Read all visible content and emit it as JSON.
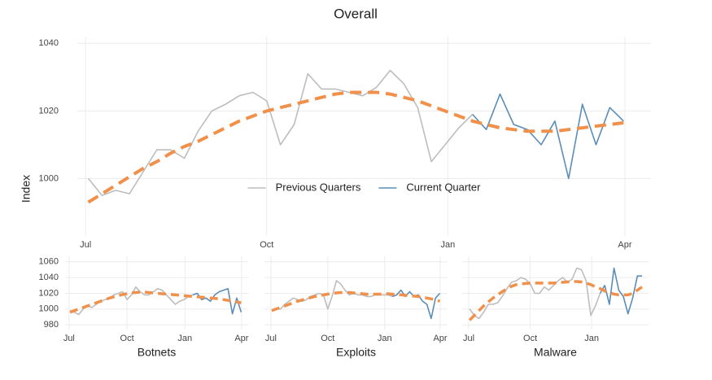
{
  "chart_data": [
    {
      "type": "line",
      "title": "Overall",
      "ylabel": "Index",
      "legend": "center",
      "grid": true,
      "x": [
        0,
        1,
        2,
        3,
        4,
        5,
        6,
        7,
        8,
        9,
        10,
        11,
        12,
        13,
        14,
        15,
        16,
        17,
        18,
        19,
        20,
        21,
        22,
        23,
        24,
        25,
        26,
        27,
        28,
        29,
        30,
        31,
        32,
        33,
        34,
        35,
        36,
        37,
        38,
        39
      ],
      "xlim": [
        -0.8,
        41
      ],
      "xticks": [
        {
          "value": -0.2,
          "label": "Jul"
        },
        {
          "value": 13,
          "label": "Oct"
        },
        {
          "value": 26.2,
          "label": "Jan"
        },
        {
          "value": 39.1,
          "label": "Apr"
        }
      ],
      "ylim": [
        983,
        1042
      ],
      "yticks": [
        1000,
        1020,
        1040
      ],
      "series": [
        {
          "name": "Previous Quarters",
          "color": "#bdbdbd",
          "values": [
            1000,
            995,
            996.5,
            995.5,
            1002,
            1008.5,
            1008.5,
            1006,
            1014,
            1020,
            1022,
            1024.5,
            1025.5,
            1023,
            1010,
            1016,
            1031,
            1026.5,
            1026.5,
            1025.5,
            1024.5,
            1027,
            1032,
            1028,
            1021,
            1005,
            1010,
            1015,
            1019,
            null,
            null,
            null,
            null,
            null,
            null,
            null,
            null,
            null,
            null,
            null
          ]
        },
        {
          "name": "Current Quarter",
          "color": "#5b8db8",
          "values": [
            null,
            null,
            null,
            null,
            null,
            null,
            null,
            null,
            null,
            null,
            null,
            null,
            null,
            null,
            null,
            null,
            null,
            null,
            null,
            null,
            null,
            null,
            null,
            null,
            null,
            null,
            null,
            null,
            1019,
            1014.5,
            1025,
            1016,
            1014.5,
            1010,
            1017,
            1000,
            1022,
            1010,
            1021,
            1017
          ]
        },
        {
          "color": "#f0904a",
          "dash": true,
          "values": [
            993,
            995.5,
            998,
            1000.5,
            1003,
            1005,
            1007.5,
            1009.5,
            1011,
            1013,
            1015,
            1017,
            1018.5,
            1020,
            1021,
            1022,
            1023,
            1024,
            1025,
            1025.5,
            1025.5,
            1025.5,
            1025,
            1024,
            1023,
            1021.5,
            1020,
            1018.5,
            1017,
            1016,
            1015,
            1014.5,
            1014,
            1014,
            1014,
            1014.5,
            1015,
            1015.5,
            1016,
            1016.5
          ]
        }
      ]
    },
    {
      "type": "line",
      "title": "Botnets",
      "grid": true,
      "x": [
        0,
        1,
        2,
        3,
        4,
        5,
        6,
        7,
        8,
        9,
        10,
        11,
        12,
        13,
        14,
        15,
        16,
        17,
        18,
        19,
        20,
        21,
        22,
        23,
        24,
        25,
        26,
        27,
        28,
        29,
        30,
        31,
        32,
        33,
        34,
        35,
        36,
        37,
        38,
        39
      ],
      "xlim": [
        -1.1,
        40.6
      ],
      "xticks": [
        {
          "value": -0.2,
          "label": "Jul"
        },
        {
          "value": 13,
          "label": "Oct"
        },
        {
          "value": 26.2,
          "label": "Jan"
        },
        {
          "value": 39.1,
          "label": "Apr"
        }
      ],
      "ylim": [
        974,
        1067
      ],
      "yticks": [
        980,
        1000,
        1020,
        1040,
        1060
      ],
      "series": [
        {
          "color": "#bdbdbd",
          "values": [
            998,
            996,
            993,
            1000,
            1004,
            1002,
            1006,
            1010,
            1012,
            1014,
            1018,
            1020,
            1022,
            1012,
            1018,
            1028,
            1022,
            1018,
            1018,
            1022,
            1026,
            1024,
            1018,
            1012,
            1006,
            1010,
            1012,
            1016,
            1018,
            null,
            null,
            null,
            null,
            null,
            null,
            null,
            null,
            null,
            null,
            null
          ]
        },
        {
          "color": "#5b8db8",
          "values": [
            null,
            null,
            null,
            null,
            null,
            null,
            null,
            null,
            null,
            null,
            null,
            null,
            null,
            null,
            null,
            null,
            null,
            null,
            null,
            null,
            null,
            null,
            null,
            null,
            null,
            null,
            null,
            null,
            1018,
            1020,
            1012,
            1014,
            1010,
            1018,
            1022,
            1024,
            1026,
            994,
            1014,
            996
          ]
        },
        {
          "color": "#f0904a",
          "dash": true,
          "values": [
            996,
            998,
            1000,
            1002,
            1004,
            1006,
            1008,
            1010,
            1012,
            1014,
            1015.5,
            1017,
            1018.5,
            1019.5,
            1020.5,
            1021,
            1021.5,
            1021.5,
            1021,
            1020.5,
            1020,
            1019.5,
            1019,
            1018.5,
            1018,
            1017.5,
            1017,
            1016.5,
            1016,
            1015.5,
            1015,
            1014.5,
            1014,
            1013.5,
            1013,
            1012,
            1011,
            1010,
            1009,
            1008
          ]
        }
      ]
    },
    {
      "type": "line",
      "title": "Exploits",
      "grid": true,
      "sharey": true,
      "x": [
        0,
        1,
        2,
        3,
        4,
        5,
        6,
        7,
        8,
        9,
        10,
        11,
        12,
        13,
        14,
        15,
        16,
        17,
        18,
        19,
        20,
        21,
        22,
        23,
        24,
        25,
        26,
        27,
        28,
        29,
        30,
        31,
        32,
        33,
        34,
        35,
        36,
        37,
        38,
        39
      ],
      "xlim": [
        -1.7,
        40.8
      ],
      "xticks": [
        {
          "value": -0.2,
          "label": "Jul"
        },
        {
          "value": 13,
          "label": "Oct"
        },
        {
          "value": 26.2,
          "label": "Jan"
        },
        {
          "value": 39.1,
          "label": "Apr"
        }
      ],
      "ylim": [
        974,
        1067
      ],
      "yticks": [
        980,
        1000,
        1020,
        1040,
        1060
      ],
      "series": [
        {
          "color": "#bdbdbd",
          "values": [
            998,
            1000,
            1000,
            1006,
            1010,
            1014,
            1012,
            1010,
            1012,
            1016,
            1018,
            1020,
            1018,
            1000,
            1016,
            1036,
            1032,
            1024,
            1018,
            1020,
            1018,
            1018,
            1016,
            1016,
            1018,
            1018,
            1018,
            1018,
            1016,
            null,
            null,
            null,
            null,
            null,
            null,
            null,
            null,
            null,
            null,
            null
          ]
        },
        {
          "color": "#5b8db8",
          "values": [
            null,
            null,
            null,
            null,
            null,
            null,
            null,
            null,
            null,
            null,
            null,
            null,
            null,
            null,
            null,
            null,
            null,
            null,
            null,
            null,
            null,
            null,
            null,
            null,
            null,
            null,
            null,
            null,
            1016,
            1018,
            1024,
            1016,
            1022,
            1016,
            1018,
            1010,
            1006,
            988,
            1014,
            1020
          ]
        },
        {
          "color": "#f0904a",
          "dash": true,
          "values": [
            998,
            1000,
            1002,
            1004,
            1006,
            1008,
            1010,
            1011.5,
            1013,
            1014.5,
            1016,
            1017,
            1018,
            1019,
            1020,
            1020.5,
            1021,
            1021,
            1021,
            1020.5,
            1020,
            1019.5,
            1019,
            1019,
            1019,
            1019,
            1019.5,
            1019.5,
            1019,
            1018.5,
            1018,
            1017.5,
            1017,
            1016.5,
            1016,
            1015,
            1014,
            1013,
            1012,
            1010
          ]
        }
      ]
    },
    {
      "type": "line",
      "title": "Malware",
      "grid": true,
      "sharey": true,
      "x": [
        0,
        1,
        2,
        3,
        4,
        5,
        6,
        7,
        8,
        9,
        10,
        11,
        12,
        13,
        14,
        15,
        16,
        17,
        18,
        19,
        20,
        21,
        22,
        23,
        24,
        25,
        26,
        27,
        28,
        29,
        30,
        31,
        32,
        33,
        34,
        35,
        36,
        37
      ],
      "xlim": [
        -1.6,
        38.4
      ],
      "xticks": [
        {
          "value": -0.2,
          "label": "Jul"
        },
        {
          "value": 13,
          "label": "Oct"
        },
        {
          "value": 26.2,
          "label": "Jan"
        }
      ],
      "ylim": [
        974,
        1067
      ],
      "yticks": [
        980,
        1000,
        1020,
        1040,
        1060
      ],
      "series": [
        {
          "color": "#bdbdbd",
          "values": [
            1000,
            992,
            988,
            996,
            1006,
            1006,
            1008,
            1016,
            1026,
            1034,
            1036,
            1040,
            1038,
            1032,
            1020,
            1020,
            1028,
            1024,
            1030,
            1036,
            1040,
            1034,
            1038,
            1052,
            1050,
            1036,
            992,
            1004,
            1020,
            null,
            null,
            null,
            null,
            null,
            null,
            null,
            null,
            null
          ]
        },
        {
          "color": "#5b8db8",
          "values": [
            null,
            null,
            null,
            null,
            null,
            null,
            null,
            null,
            null,
            null,
            null,
            null,
            null,
            null,
            null,
            null,
            null,
            null,
            null,
            null,
            null,
            null,
            null,
            null,
            null,
            null,
            null,
            null,
            1020,
            1030,
            1006,
            1052,
            1024,
            1016,
            994,
            1014,
            1042,
            1042
          ]
        },
        {
          "color": "#f0904a",
          "dash": true,
          "values": [
            986,
            992,
            998,
            1004,
            1009,
            1014,
            1018,
            1022,
            1026,
            1029,
            1031,
            1032,
            1032.5,
            1033,
            1033,
            1033,
            1033,
            1033,
            1033,
            1033.5,
            1034,
            1034.5,
            1035,
            1035,
            1034.5,
            1033,
            1031,
            1028.5,
            1026,
            1023,
            1021,
            1019,
            1018,
            1018,
            1018,
            1020,
            1024,
            1028
          ]
        }
      ]
    }
  ]
}
